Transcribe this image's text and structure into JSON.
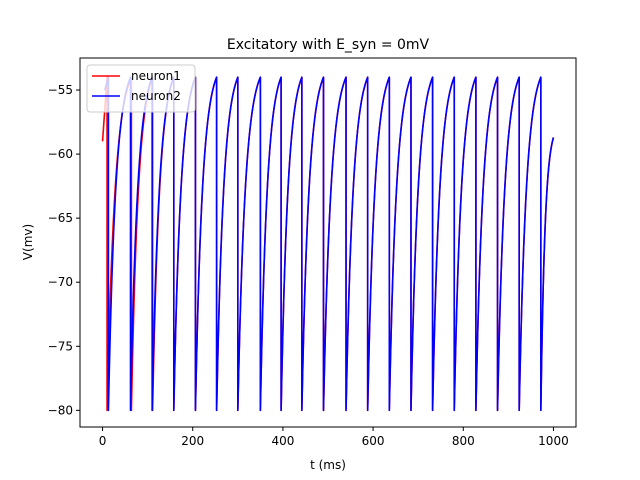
{
  "chart_data": {
    "type": "line",
    "title": "Excitatory with E_syn = 0mV",
    "xlabel": "t (ms)",
    "ylabel": "V(mv)",
    "xlim": [
      -50,
      1050
    ],
    "ylim": [
      -81.3,
      -52.5
    ],
    "xticks": [
      0,
      200,
      400,
      600,
      800,
      1000
    ],
    "xtick_labels": [
      "0",
      "200",
      "400",
      "600",
      "800",
      "1000"
    ],
    "yticks": [
      -80,
      -75,
      -70,
      -65,
      -60,
      -55
    ],
    "ytick_labels": [
      "−80",
      "−75",
      "−70",
      "−65",
      "−60",
      "−55"
    ],
    "grid": false,
    "legend_position": "top-left",
    "reset_potential": -80,
    "spike_threshold": -54,
    "series": [
      {
        "name": "neuron1",
        "color": "#ff0000",
        "start": [
          0,
          -59
        ],
        "spike_times": [
          10,
          64,
          111,
          158,
          206,
          253,
          300,
          350,
          396,
          442,
          490,
          540,
          588,
          636,
          684,
          732,
          780,
          828,
          876,
          924,
          972
        ],
        "end": [
          1000,
          -58.7
        ]
      },
      {
        "name": "neuron2",
        "color": "#0000ff",
        "start": [
          5,
          -55
        ],
        "spike_times": [
          13,
          62,
          110,
          158,
          206,
          253,
          300,
          350,
          396,
          442,
          490,
          540,
          588,
          636,
          684,
          732,
          780,
          828,
          876,
          924,
          972
        ],
        "end": [
          1000,
          -58.7
        ]
      }
    ]
  }
}
